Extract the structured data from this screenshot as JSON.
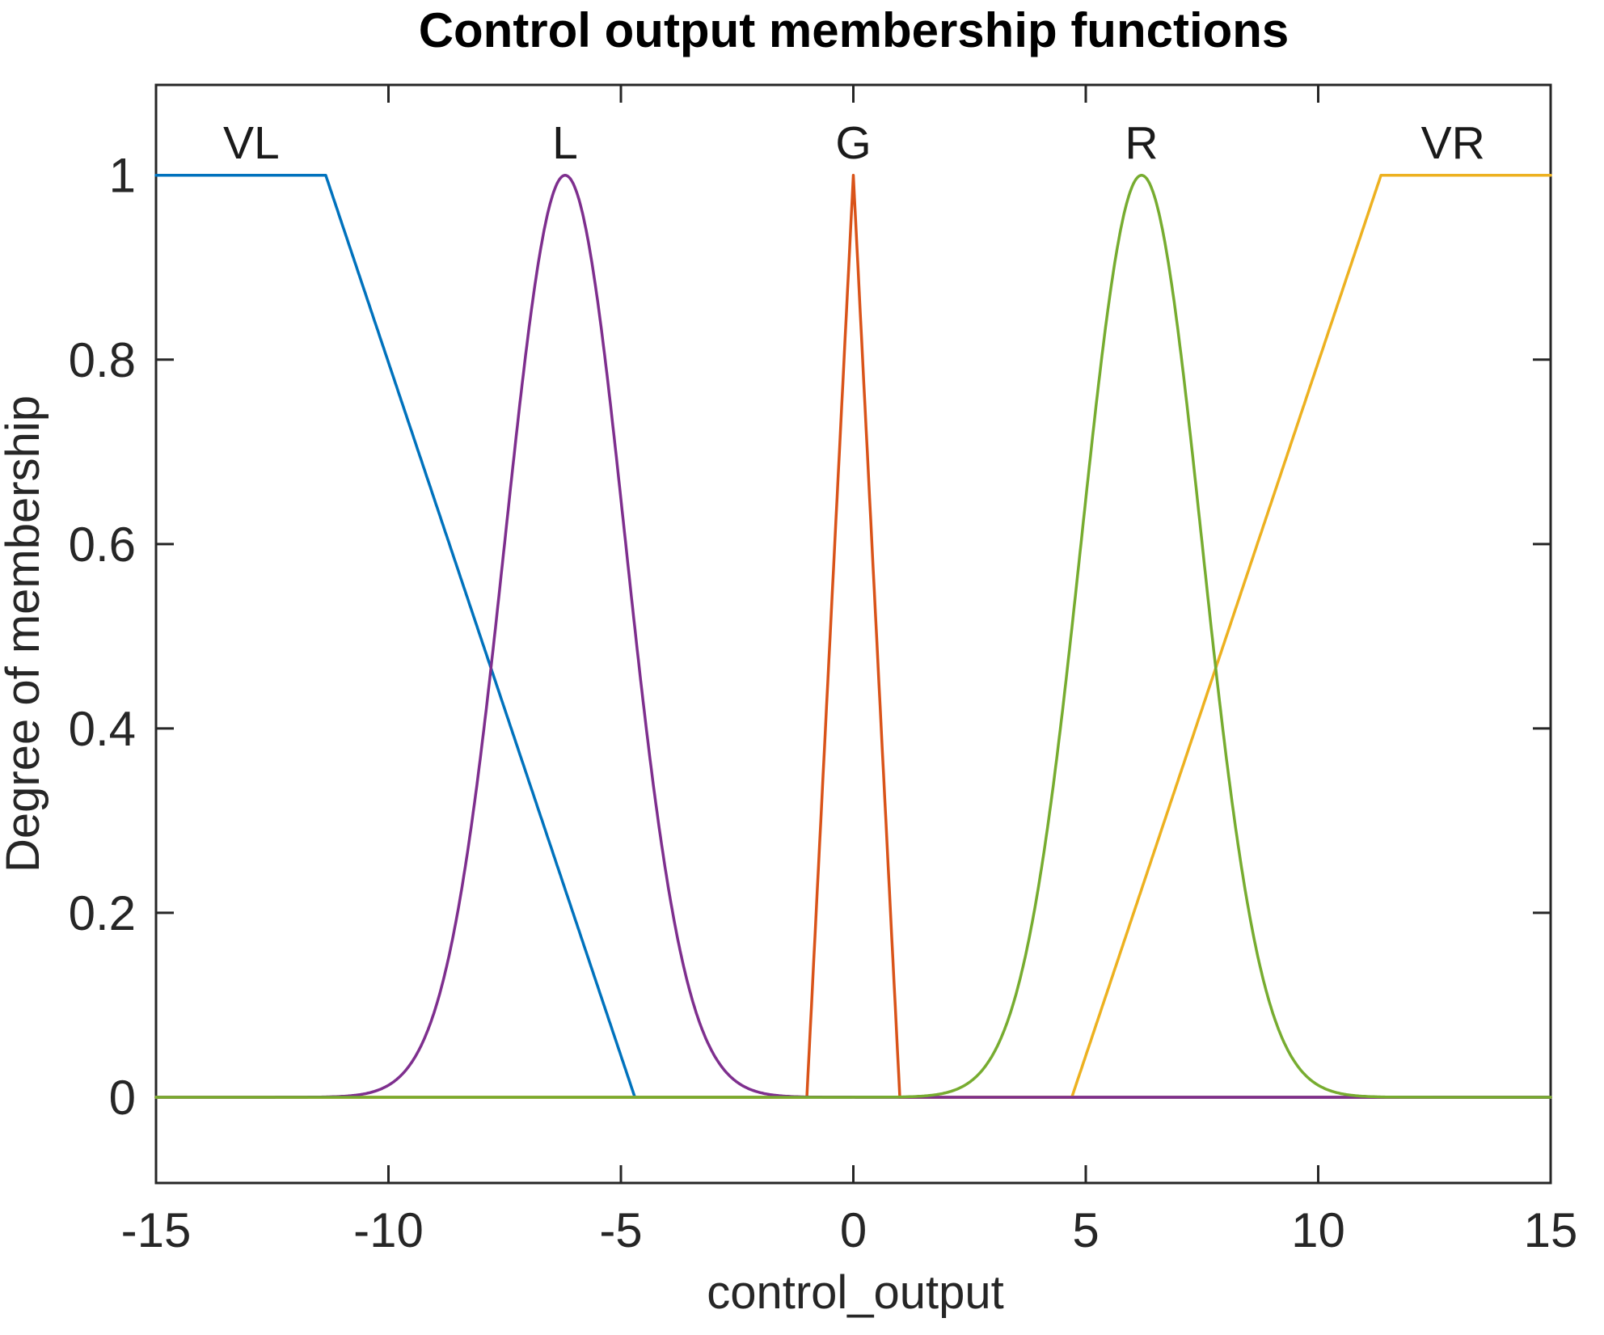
{
  "chart_data": {
    "type": "line",
    "title": "Control output membership functions",
    "xlabel": "control_output",
    "ylabel": "Degree of membership",
    "xlim": [
      -15,
      15
    ],
    "ylim": [
      -0.093,
      1.098
    ],
    "grid": false,
    "legend_position": "labels-above-curves",
    "axis_color": "#262626",
    "x_ticks": [
      {
        "v": -15,
        "label": "-15"
      },
      {
        "v": -10,
        "label": "-10"
      },
      {
        "v": -5,
        "label": "-5"
      },
      {
        "v": 0,
        "label": "0"
      },
      {
        "v": 5,
        "label": "5"
      },
      {
        "v": 10,
        "label": "10"
      },
      {
        "v": 15,
        "label": "15"
      }
    ],
    "y_ticks": [
      {
        "v": 0,
        "label": "0"
      },
      {
        "v": 0.2,
        "label": "0.2"
      },
      {
        "v": 0.4,
        "label": "0.4"
      },
      {
        "v": 0.6,
        "label": "0.6"
      },
      {
        "v": 0.8,
        "label": "0.8"
      },
      {
        "v": 1,
        "label": "1"
      }
    ],
    "series": [
      {
        "name": "VL",
        "color": "#0072BD",
        "mf": {
          "kind": "zmf-linear",
          "params": [
            -11.35,
            -4.7
          ]
        },
        "label_x": -12.95
      },
      {
        "name": "G",
        "color": "#D95319",
        "mf": {
          "kind": "trimf",
          "params": [
            -1,
            0,
            1
          ]
        },
        "label_x": 0
      },
      {
        "name": "VR",
        "color": "#EDB120",
        "mf": {
          "kind": "smf-linear",
          "params": [
            4.7,
            11.35
          ]
        },
        "label_x": 12.9
      },
      {
        "name": "L",
        "color": "#7E2F8E",
        "mf": {
          "kind": "gaussmf",
          "params": [
            1.29,
            -6.2
          ]
        },
        "label_x": -6.2
      },
      {
        "name": "R",
        "color": "#77AC30",
        "mf": {
          "kind": "gaussmf",
          "params": [
            1.29,
            6.2
          ]
        },
        "label_x": 6.2
      }
    ]
  }
}
